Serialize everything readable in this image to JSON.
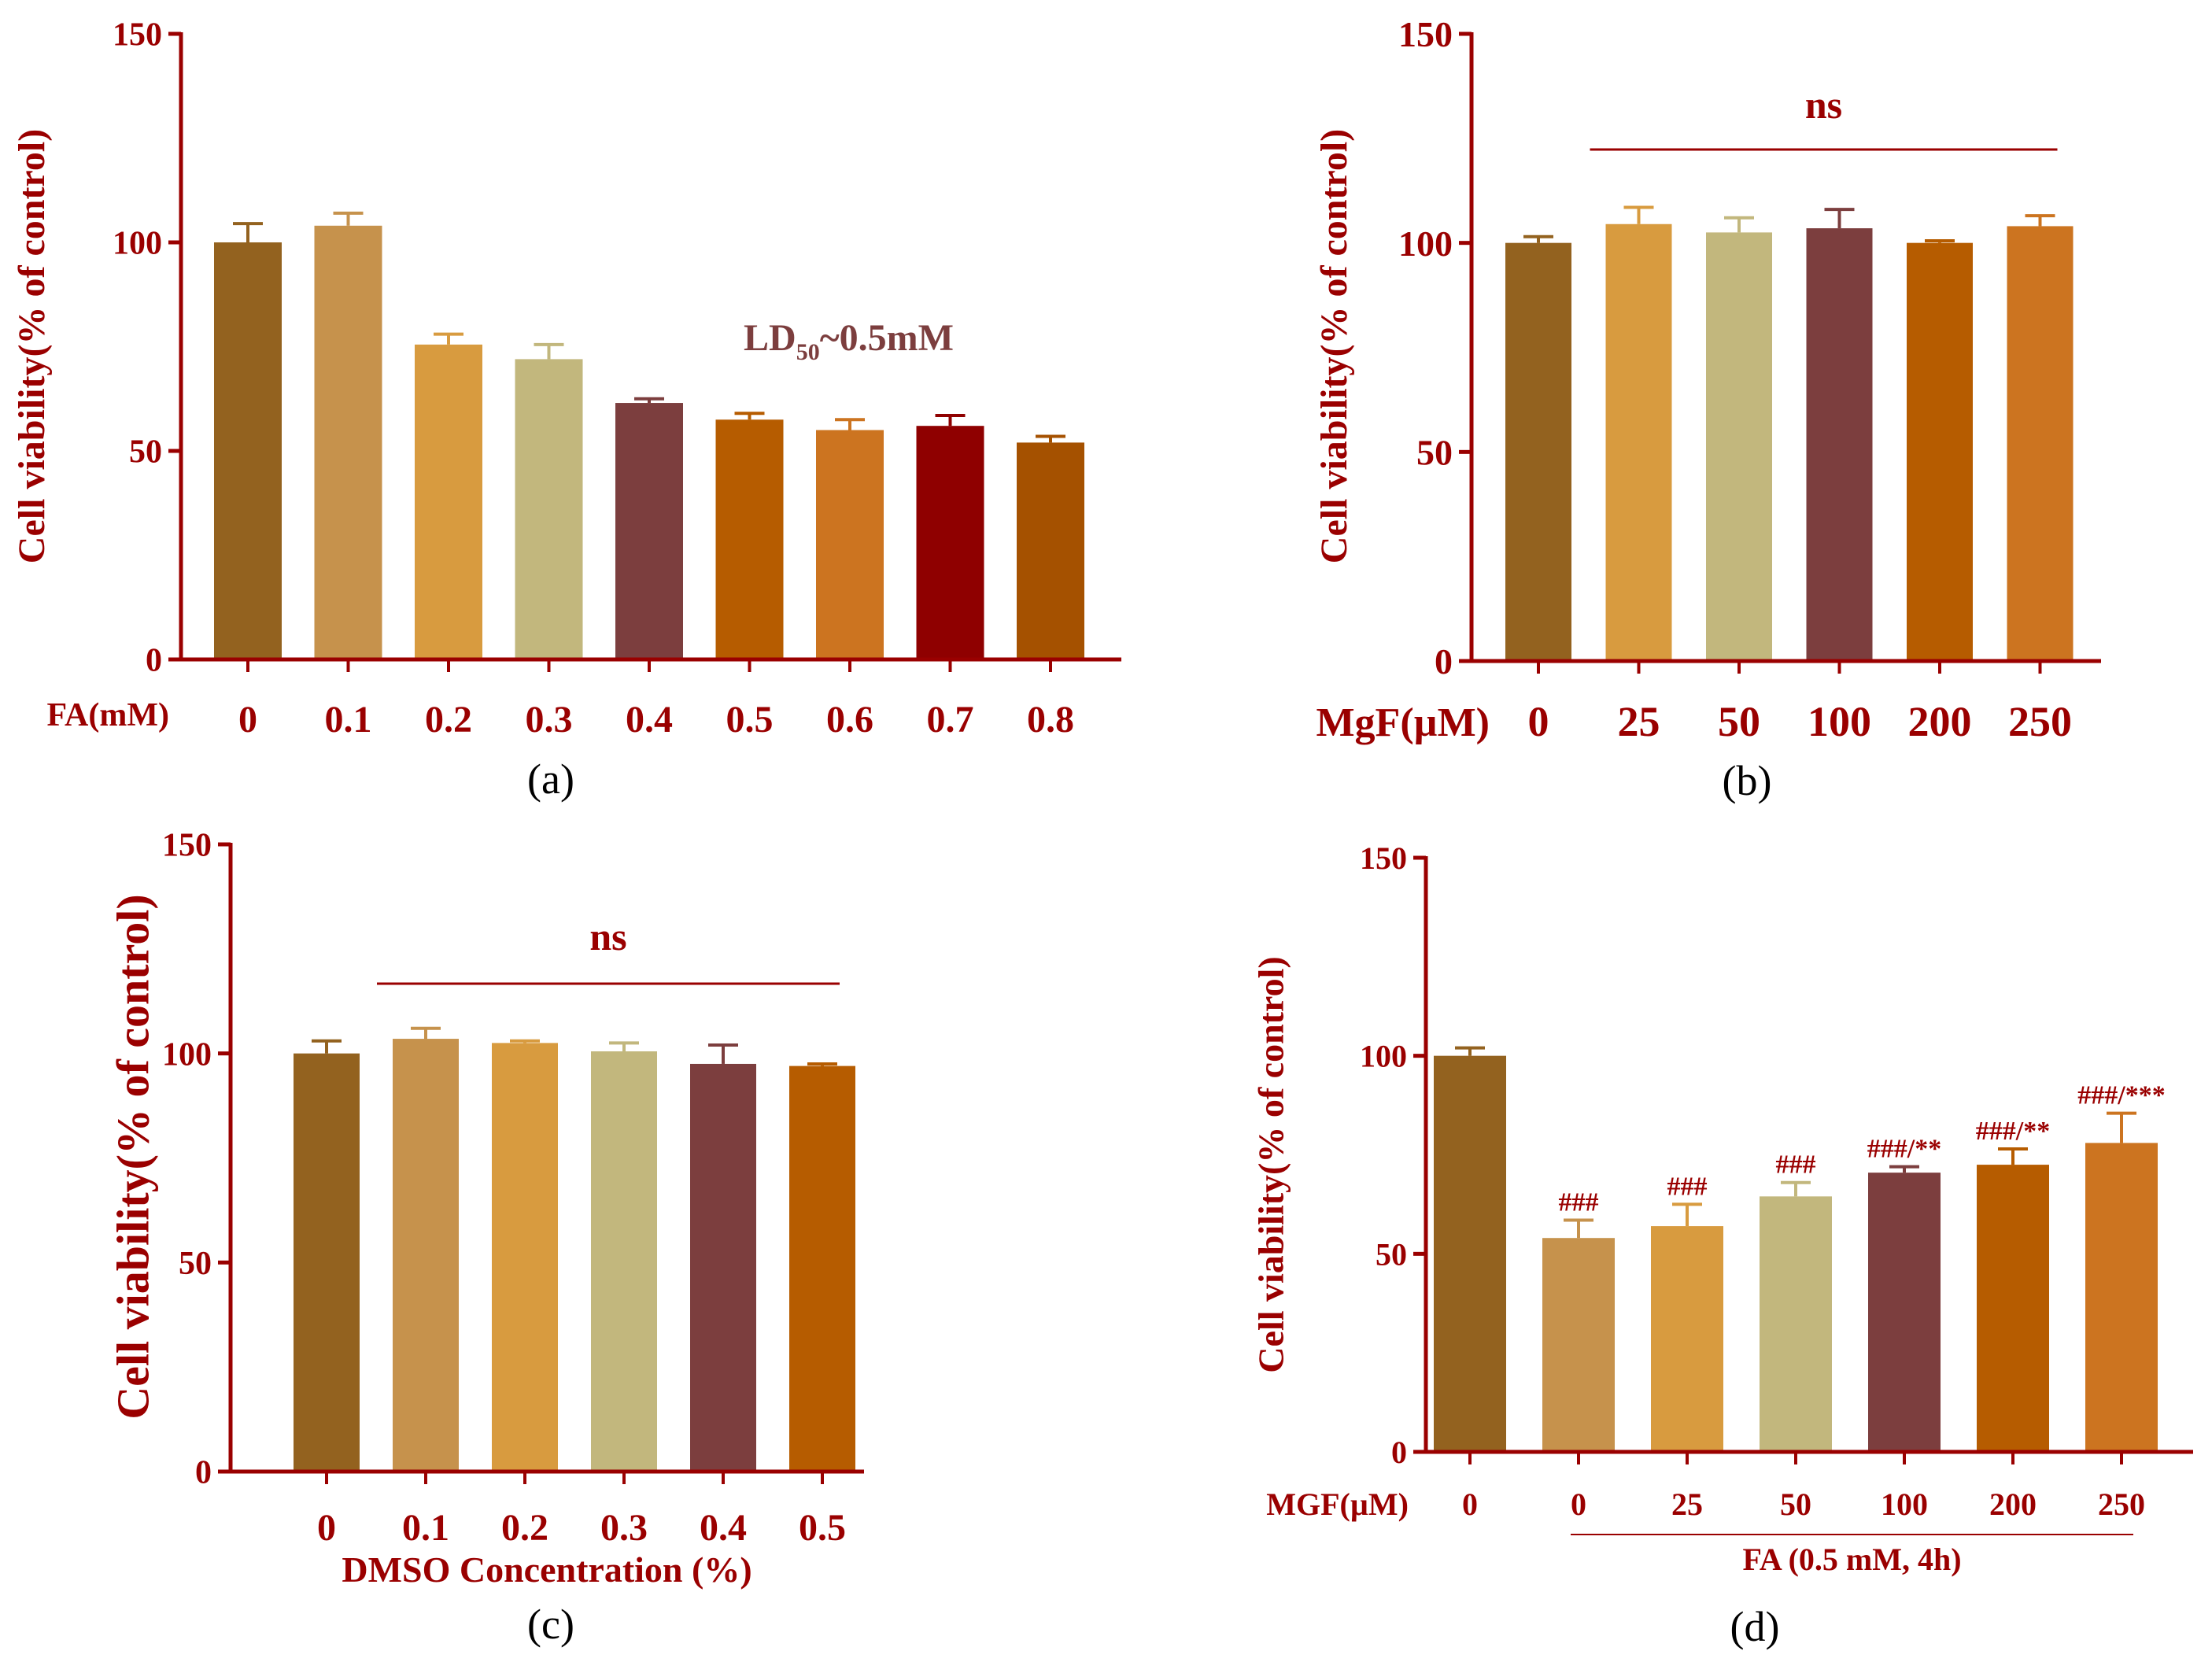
{
  "colors": {
    "axis": "#9a0000",
    "text": "#9a0000",
    "panel_label": "#000000",
    "ld50": "#7c3e3e"
  },
  "chart_data": [
    {
      "id": "a",
      "type": "bar",
      "panel_label": "(a)",
      "ylabel": "Cell viability(% of control)",
      "xlabel": "FA(mM)",
      "ylim": [
        0,
        150
      ],
      "yticks": [
        "0",
        "50",
        "100",
        "150"
      ],
      "categories": [
        "0",
        "0.1",
        "0.2",
        "0.3",
        "0.4",
        "0.5",
        "0.6",
        "0.7",
        "0.8"
      ],
      "values": [
        100,
        104,
        75.5,
        72,
        61.5,
        57.5,
        55,
        56,
        52
      ],
      "errors": [
        4.5,
        3,
        2.5,
        3.5,
        1,
        1.5,
        2.5,
        2.5,
        1.5
      ],
      "colors": [
        "#93621f",
        "#c6924c",
        "#d89b3f",
        "#c2b77d",
        "#7c3e3e",
        "#b65c00",
        "#cc7420",
        "#8f0000",
        "#a55100"
      ],
      "annotations": [
        {
          "text": "LD",
          "sub": "50",
          "tail": "~0.5mM"
        }
      ]
    },
    {
      "id": "b",
      "type": "bar",
      "panel_label": "(b)",
      "ylabel": "Cell viability(% of control)",
      "xlabel": "MgF(µM)",
      "ylim": [
        0,
        150
      ],
      "yticks": [
        "0",
        "50",
        "100",
        "150"
      ],
      "categories": [
        "0",
        "25",
        "50",
        "100",
        "200",
        "250"
      ],
      "values": [
        100,
        104.5,
        102.5,
        103.5,
        100,
        104
      ],
      "errors": [
        1.5,
        4,
        3.5,
        4.5,
        0.5,
        2.5
      ],
      "colors": [
        "#93621f",
        "#d89b3f",
        "#c2b77d",
        "#7c3e3e",
        "#b65c00",
        "#cc7420"
      ],
      "significance": {
        "text": "ns",
        "from": 1,
        "to": 5
      }
    },
    {
      "id": "c",
      "type": "bar",
      "panel_label": "(c)",
      "ylabel": "Cell viability(% of control)",
      "xlabel": "DMSO Concentration (%)",
      "ylim": [
        0,
        150
      ],
      "yticks": [
        "0",
        "50",
        "100",
        "150"
      ],
      "categories": [
        "0",
        "0.1",
        "0.2",
        "0.3",
        "0.4",
        "0.5"
      ],
      "values": [
        100,
        103.5,
        102.5,
        100.5,
        97.5,
        97
      ],
      "errors": [
        3,
        2.5,
        0.5,
        2,
        4.5,
        0.5
      ],
      "colors": [
        "#93621f",
        "#c6924c",
        "#d89b3f",
        "#c2b77d",
        "#7c3e3e",
        "#b65c00"
      ],
      "significance": {
        "text": "ns",
        "from": 1,
        "to": 5
      }
    },
    {
      "id": "d",
      "type": "bar",
      "panel_label": "(d)",
      "ylabel": "Cell viability(% of control)",
      "xlabel": "MGF(µM)",
      "ylim": [
        0,
        150
      ],
      "yticks": [
        "0",
        "50",
        "100",
        "150"
      ],
      "categories": [
        "0",
        "0",
        "25",
        "50",
        "100",
        "200",
        "250"
      ],
      "values": [
        100,
        54,
        57,
        64.5,
        70.5,
        72.5,
        78
      ],
      "errors": [
        2,
        4.5,
        5.5,
        3.5,
        1.5,
        4,
        7.5
      ],
      "colors": [
        "#93621f",
        "#c6924c",
        "#d89b3f",
        "#c2b77d",
        "#7c3e3e",
        "#b65c00",
        "#cc7420"
      ],
      "bar_labels": [
        "",
        "###",
        "###",
        "###",
        "###/**",
        "###/**",
        "###/***"
      ],
      "group": {
        "text": "FA (0.5 mM, 4h)",
        "from": 1,
        "to": 6
      }
    }
  ]
}
